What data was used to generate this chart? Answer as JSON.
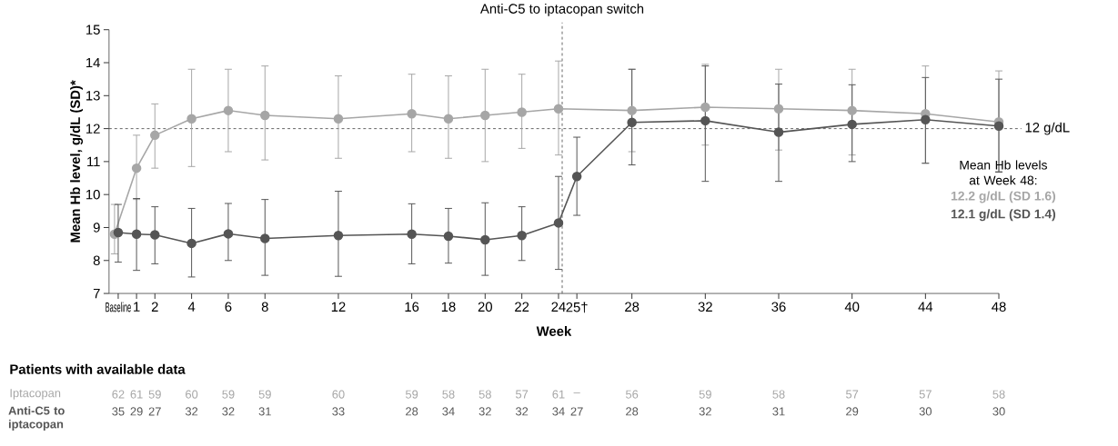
{
  "chart_data": {
    "type": "line",
    "xlabel": "Week",
    "ylabel": "Mean Hb level, g/dL (SD)*",
    "x": [
      0,
      1,
      2,
      4,
      6,
      8,
      12,
      16,
      18,
      20,
      22,
      24,
      25,
      28,
      32,
      36,
      40,
      44,
      48
    ],
    "series": [
      {
        "color": "#a6a6a6",
        "x": [
          -0.2,
          1,
          2,
          4,
          6,
          8,
          12,
          16,
          18,
          20,
          22,
          24,
          25,
          28,
          32,
          36,
          40,
          44,
          48
        ],
        "values": [
          8.8,
          10.8,
          11.8,
          12.3,
          12.55,
          12.4,
          12.3,
          12.45,
          12.3,
          12.4,
          12.5,
          12.6,
          null,
          12.55,
          12.65,
          12.6,
          12.55,
          12.45,
          12.2
        ],
        "errors": [
          [
            8.2,
            9.7
          ],
          [
            9.85,
            11.8
          ],
          [
            10.8,
            12.75
          ],
          [
            10.85,
            13.8
          ],
          [
            11.3,
            13.8
          ],
          [
            11.05,
            13.9
          ],
          [
            11.1,
            13.6
          ],
          [
            11.3,
            13.65
          ],
          [
            11.1,
            13.6
          ],
          [
            11.0,
            13.8
          ],
          [
            11.4,
            13.65
          ],
          [
            11.2,
            14.05
          ],
          null,
          [
            11.3,
            13.8
          ],
          [
            11.5,
            13.95
          ],
          [
            11.35,
            13.8
          ],
          [
            11.2,
            13.8
          ],
          [
            10.95,
            13.9
          ],
          [
            10.7,
            13.75
          ]
        ]
      },
      {
        "color": "#555555",
        "values": [
          8.85,
          8.8,
          8.78,
          8.52,
          8.81,
          8.67,
          8.76,
          8.8,
          8.74,
          8.63,
          8.76,
          9.14,
          10.55,
          12.19,
          12.24,
          11.89,
          12.13,
          12.27,
          12.08
        ],
        "errors": [
          [
            7.95,
            9.7
          ],
          [
            7.7,
            9.88
          ],
          [
            7.9,
            9.63
          ],
          [
            7.5,
            9.58
          ],
          [
            8.0,
            9.73
          ],
          [
            7.55,
            9.85
          ],
          [
            7.52,
            10.1
          ],
          [
            7.9,
            9.72
          ],
          [
            7.92,
            9.58
          ],
          [
            7.55,
            9.75
          ],
          [
            8.0,
            9.63
          ],
          [
            7.73,
            10.55
          ],
          [
            9.37,
            11.74
          ],
          [
            10.9,
            13.8
          ],
          [
            10.4,
            13.9
          ],
          [
            10.4,
            13.35
          ],
          [
            11.0,
            13.33
          ],
          [
            10.95,
            13.55
          ],
          [
            10.68,
            13.5
          ]
        ]
      }
    ],
    "xlim": [
      -0.5,
      48
    ],
    "xticks": [
      {
        "value": 0,
        "label": "Baseline"
      },
      1,
      2,
      4,
      6,
      8,
      12,
      16,
      18,
      20,
      22,
      24,
      {
        "value": 25,
        "label": "25†"
      },
      28,
      32,
      36,
      40,
      44,
      48
    ],
    "ylim": [
      7,
      15
    ],
    "yticks": [
      7,
      8,
      9,
      10,
      11,
      12,
      13,
      14,
      15
    ],
    "marker": "circle",
    "ref_lines": [
      {
        "axis": "y",
        "value": 12,
        "label": "12 g/dL",
        "color": "#404040",
        "line_style": "dashed"
      },
      {
        "axis": "x",
        "value": 24.2,
        "label": "Anti-C5 to iptacopan switch",
        "color": "#404040",
        "line_style": "dashed"
      }
    ],
    "annotations": [
      "Mean Hb levels at Week 48:",
      "12.2 g/dL (SD 1.6)",
      "12.1 g/dL (SD 1.4)",
      "Patients with available data",
      "Iptacopan",
      "Anti-C5 to iptacopan",
      "62",
      "61",
      "59",
      "60",
      "59",
      "59",
      "60",
      "59",
      "58",
      "58",
      "57",
      "61",
      "–",
      "56",
      "59",
      "58",
      "57",
      "57",
      "58",
      "35",
      "29",
      "27",
      "32",
      "32",
      "31",
      "33",
      "28",
      "34",
      "32",
      "32",
      "34",
      "27",
      "28",
      "32",
      "31",
      "29",
      "30",
      "30"
    ]
  }
}
